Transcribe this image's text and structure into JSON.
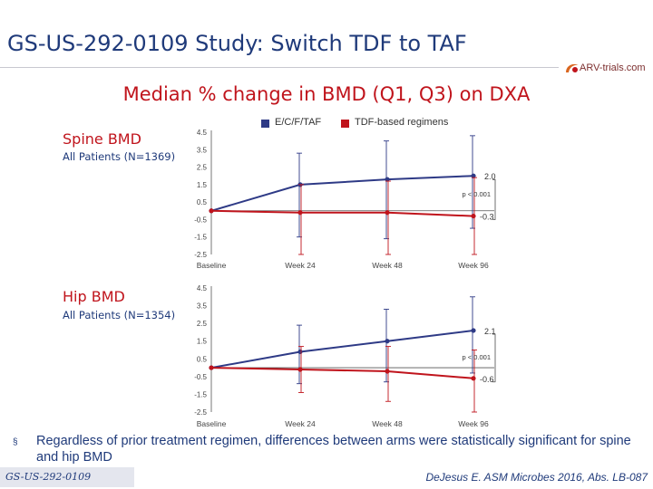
{
  "header": {
    "title": "GS-US-292-0109 Study: Switch TDF to TAF",
    "logo_text": "ARV-trials.com",
    "subtitle": "Median % change in BMD (Q1, Q3) on DXA"
  },
  "legend": [
    {
      "label": "E/C/F/TAF",
      "color": "#2e3a86"
    },
    {
      "label": "TDF-based regimens",
      "color": "#c0141c"
    }
  ],
  "chart_data": [
    {
      "type": "line",
      "title": "Spine BMD",
      "subtitle": "All Patients (N=1369)",
      "categories": [
        "Baseline",
        "Week 24",
        "Week 48",
        "Week 96"
      ],
      "y_ticks": [
        "4.5",
        "3.5",
        "2.5",
        "1.5",
        "0.5",
        "-0.5",
        "-1.5",
        "-2.5"
      ],
      "ylim": [
        -2.5,
        4.5
      ],
      "series": [
        {
          "name": "E/C/F/TAF",
          "color": "#2e3a86",
          "values": [
            0,
            1.5,
            1.8,
            2.0
          ],
          "q1": [
            0,
            -1.5,
            -1.6,
            -1.0
          ],
          "q3": [
            0,
            3.3,
            4.0,
            4.3
          ]
        },
        {
          "name": "TDF-based regimens",
          "color": "#c0141c",
          "values": [
            0,
            -0.1,
            -0.1,
            -0.3
          ],
          "q1": [
            0,
            -2.5,
            -2.5,
            -2.5
          ],
          "q3": [
            0,
            1.5,
            1.7,
            1.9
          ]
        }
      ],
      "end_labels": {
        "taf": "2.0",
        "tdf": "-0.3"
      },
      "p_value": "p < 0.001"
    },
    {
      "type": "line",
      "title": "Hip BMD",
      "subtitle": "All Patients (N=1354)",
      "categories": [
        "Baseline",
        "Week 24",
        "Week 48",
        "Week 96"
      ],
      "y_ticks": [
        "4.5",
        "3.5",
        "2.5",
        "1.5",
        "0.5",
        "-0.5",
        "-1.5",
        "-2.5"
      ],
      "ylim": [
        -2.5,
        4.5
      ],
      "series": [
        {
          "name": "E/C/F/TAF",
          "color": "#2e3a86",
          "values": [
            0,
            0.9,
            1.5,
            2.1
          ],
          "q1": [
            0,
            -0.9,
            -0.8,
            -0.3
          ],
          "q3": [
            0,
            2.4,
            3.3,
            4.0
          ]
        },
        {
          "name": "TDF-based regimens",
          "color": "#c0141c",
          "values": [
            0,
            -0.1,
            -0.2,
            -0.6
          ],
          "q1": [
            0,
            -1.4,
            -1.9,
            -2.5
          ],
          "q3": [
            0,
            1.2,
            1.2,
            1.0
          ]
        }
      ],
      "end_labels": {
        "taf": "2.1",
        "tdf": "-0.6"
      },
      "p_value": "p < 0.001"
    }
  ],
  "footnote": {
    "bullet": "§",
    "text": "Regardless of prior treatment regimen, differences between arms were statistically significant for spine and hip BMD"
  },
  "footer": {
    "study_tag": "GS-US-292-0109",
    "citation": "DeJesus E. ASM Microbes 2016, Abs. LB-087"
  }
}
